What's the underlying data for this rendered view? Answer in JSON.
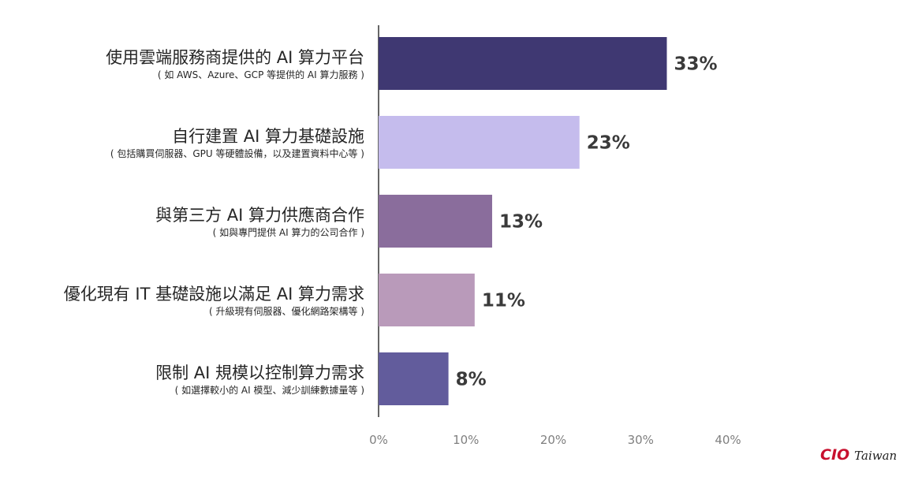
{
  "chart_data": {
    "type": "bar",
    "orientation": "horizontal",
    "categories": [
      {
        "label": "使用雲端服務商提供的 AI 算力平台",
        "sublabel": "( 如 AWS、Azure、GCP 等提供的 AI 算力服務 )"
      },
      {
        "label": "自行建置 AI 算力基礎設施",
        "sublabel": "( 包括購買伺服器、GPU 等硬體設備，以及建置資料中心等 )"
      },
      {
        "label": "與第三方 AI 算力供應商合作",
        "sublabel": "( 如與專門提供 AI 算力的公司合作 )"
      },
      {
        "label": "優化現有 IT 基礎設施以滿足 AI 算力需求",
        "sublabel": "( 升級現有伺服器、優化網路架構等 )"
      },
      {
        "label": "限制 AI 規模以控制算力需求",
        "sublabel": "( 如選擇較小的 AI 模型、減少訓練數據量等 )"
      }
    ],
    "values": [
      33,
      23,
      13,
      11,
      8
    ],
    "value_labels": [
      "33%",
      "23%",
      "13%",
      "11%",
      "8%"
    ],
    "bar_colors": [
      "#3f3872",
      "#c5bced",
      "#8a6d9c",
      "#b99aba",
      "#625c9c"
    ],
    "xlim": [
      0,
      40
    ],
    "x_ticks": [
      0,
      10,
      20,
      30,
      40
    ],
    "x_tick_labels": [
      "0%",
      "10%",
      "20%",
      "30%",
      "40%"
    ],
    "grid": false,
    "legend": "none"
  },
  "brand": {
    "name": "CIO",
    "suffix": "Taiwan",
    "name_color": "#c8102e"
  }
}
